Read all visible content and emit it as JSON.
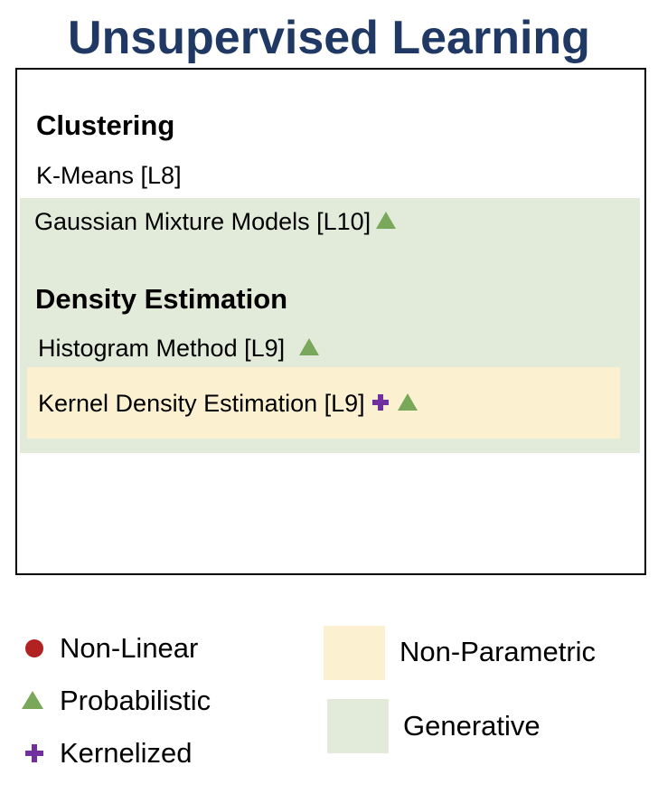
{
  "title": "Unsupervised Learning",
  "sections": [
    {
      "heading": "Clustering",
      "items": [
        {
          "label": "K-Means [L8]",
          "markers": []
        },
        {
          "label": "Gaussian Mixture Models [L10]",
          "markers": [
            "triangle-icon"
          ]
        }
      ]
    },
    {
      "heading": "Density Estimation",
      "items": [
        {
          "label": "Histogram Method [L9]",
          "markers": [
            "triangle-icon"
          ]
        },
        {
          "label": "Kernel Density Estimation [L9]",
          "markers": [
            "cross-icon",
            "triangle-icon"
          ]
        }
      ]
    }
  ],
  "legend": {
    "markers": [
      {
        "icon": "circle-icon",
        "label": "Non-Linear",
        "color": "#b22222"
      },
      {
        "icon": "triangle-icon",
        "label": "Probabilistic",
        "color": "#7aa85a"
      },
      {
        "icon": "cross-icon",
        "label": "Kernelized",
        "color": "#7030a0"
      }
    ],
    "regions": [
      {
        "label": "Non-Parametric",
        "color": "#fbf0d0"
      },
      {
        "label": "Generative",
        "color": "#e2ebd9"
      }
    ]
  },
  "colors": {
    "title": "#1f3864",
    "generative_region": "#e2ebd9",
    "non_parametric_region": "#fbf0d0",
    "frame_border": "#000000"
  }
}
